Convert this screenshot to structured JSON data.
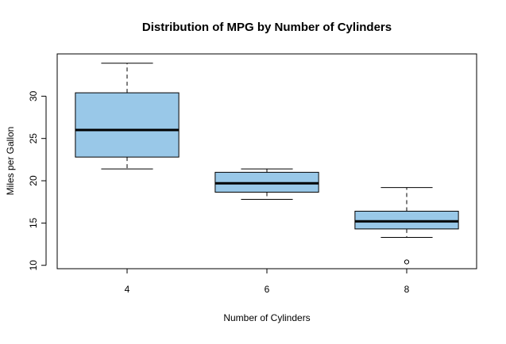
{
  "chart_data": {
    "type": "box",
    "title": "Distribution of MPG by Number of Cylinders",
    "xlabel": "Number of Cylinders",
    "ylabel": "Miles per Gallon",
    "categories": [
      "4",
      "6",
      "8"
    ],
    "ylim": [
      9.6,
      35.0
    ],
    "yticks": [
      10,
      15,
      20,
      25,
      30
    ],
    "grid": false,
    "box_color": "#99c8e8",
    "series": [
      {
        "category": "4",
        "min": 21.4,
        "q1": 22.8,
        "median": 26.0,
        "q3": 30.4,
        "max": 33.9,
        "outliers": []
      },
      {
        "category": "6",
        "min": 17.8,
        "q1": 18.65,
        "median": 19.7,
        "q3": 21.0,
        "max": 21.4,
        "outliers": []
      },
      {
        "category": "8",
        "min": 13.3,
        "q1": 14.3,
        "median": 15.2,
        "q3": 16.4,
        "max": 19.2,
        "outliers": [
          10.4
        ]
      }
    ]
  }
}
